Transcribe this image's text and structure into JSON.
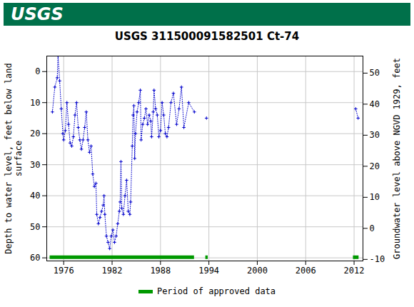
{
  "chart_data": {
    "type": "line",
    "banner": "USGS",
    "title": "USGS 311500091582501 Ct-74",
    "y_label": "Depth to water level, feet below land surface",
    "y2_label": "Groundwater level above NGVD 1929, feet",
    "x": [
      1974.6,
      1974.9,
      1975.2,
      1975.3,
      1975.5,
      1975.7,
      1975.9,
      1976.0,
      1976.2,
      1976.4,
      1976.6,
      1976.8,
      1977.0,
      1977.2,
      1977.4,
      1977.6,
      1977.8,
      1978.0,
      1978.2,
      1978.4,
      1978.6,
      1978.8,
      1979.0,
      1979.2,
      1979.4,
      1979.6,
      1979.8,
      1980.0,
      1980.1,
      1980.3,
      1980.5,
      1980.7,
      1980.9,
      1981.0,
      1981.1,
      1981.3,
      1981.5,
      1981.7,
      1981.9,
      1982.1,
      1982.3,
      1982.5,
      1982.7,
      1982.9,
      1983.0,
      1983.1,
      1983.2,
      1983.4,
      1983.6,
      1983.8,
      1984.0,
      1984.2,
      1984.3,
      1984.5,
      1984.6,
      1984.7,
      1984.8,
      1984.9,
      1985.1,
      1985.3,
      1985.5,
      1985.6,
      1985.8,
      1986.0,
      1986.2,
      1986.4,
      1986.6,
      1986.8,
      1986.9,
      1987.1,
      1987.2,
      1987.4,
      1987.6,
      1987.8,
      1988.0,
      1988.2,
      1988.4,
      1988.6,
      1988.8,
      1989.0,
      1989.3,
      1989.6,
      1990.0,
      1990.3,
      1990.6,
      1990.9,
      1991.5,
      1992.2,
      1993.0,
      1993.7,
      2003.0,
      2012.2,
      2012.5
    ],
    "values": [
      13,
      5,
      2,
      -5,
      3,
      12,
      20,
      22,
      19,
      10,
      17,
      23,
      24,
      21,
      14,
      10,
      18,
      22,
      25,
      22,
      18,
      13,
      22,
      26,
      24,
      33,
      37,
      36,
      46,
      49,
      47,
      45,
      43,
      40,
      46,
      53,
      55,
      57,
      53,
      51,
      55,
      53,
      49,
      45,
      42,
      29,
      44,
      46,
      40,
      35,
      45,
      46,
      42,
      24,
      14,
      11,
      28,
      20,
      13,
      10,
      6,
      22,
      17,
      15,
      12,
      17,
      14,
      16,
      21,
      13,
      6,
      12,
      14,
      21,
      19,
      10,
      14,
      20,
      21,
      18,
      10,
      7,
      17,
      12,
      5,
      18,
      10,
      13,
      null,
      15,
      null,
      12,
      15
    ],
    "color": "#0000cc",
    "marker": "plus",
    "line_style": "dotted",
    "approved_periods": {
      "label": "Period of approved data",
      "color": "#009900",
      "depth": 59.8,
      "ranges": [
        [
          1974.3,
          1992.2
        ],
        [
          1993.6,
          1993.9
        ],
        [
          2011.9,
          2012.6
        ]
      ]
    },
    "legend": "bottom",
    "grid": true,
    "xlim": [
      1973.9,
      2013.1
    ],
    "xticks": [
      1976,
      1982,
      1988,
      1994,
      2000,
      2006,
      2012
    ],
    "ylim": [
      61,
      -5
    ],
    "yticks": [
      0,
      10,
      20,
      30,
      40,
      50,
      60
    ],
    "y2lim": [
      -10.5,
      55.5
    ],
    "y2ticks": [
      -10,
      0,
      10,
      20,
      30,
      40,
      50
    ]
  }
}
